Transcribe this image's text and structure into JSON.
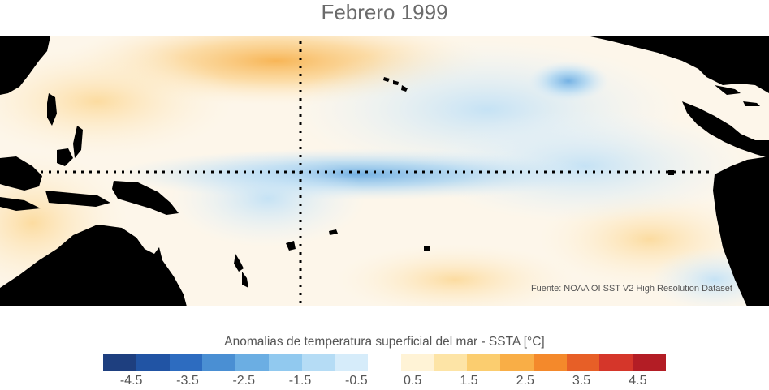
{
  "title": "Febrero 1999",
  "source_note": "Fuente: NOAA OI SST V2 High Resolution Dataset",
  "colorbar": {
    "label": "Anomalias de temperatura superficial del mar - SSTA  [°C]",
    "range": [
      -5,
      5
    ],
    "colors": [
      "#1e3f7f",
      "#2154a4",
      "#2d6cc0",
      "#4a8fd3",
      "#6baee3",
      "#91c9ef",
      "#b5dcf5",
      "#d6ecfa",
      "#ffffff",
      "#fff3d6",
      "#fde4a6",
      "#fbcd6f",
      "#f9ae46",
      "#f4892b",
      "#e75f27",
      "#d5362a",
      "#b31d25"
    ],
    "ticks": [
      "-4.5",
      "-3.5",
      "-2.5",
      "-1.5",
      "-0.5",
      "0.5",
      "1.5",
      "2.5",
      "3.5",
      "4.5"
    ]
  },
  "map": {
    "land_color": "#000000",
    "features": [
      "asia-landmass",
      "indonesia-islands",
      "papua-new-guinea",
      "australia",
      "new-zealand",
      "hawaii",
      "north-america",
      "central-america",
      "caribbean-islands",
      "south-america"
    ],
    "reference_lines": [
      "equator",
      "date-line-180"
    ]
  }
}
